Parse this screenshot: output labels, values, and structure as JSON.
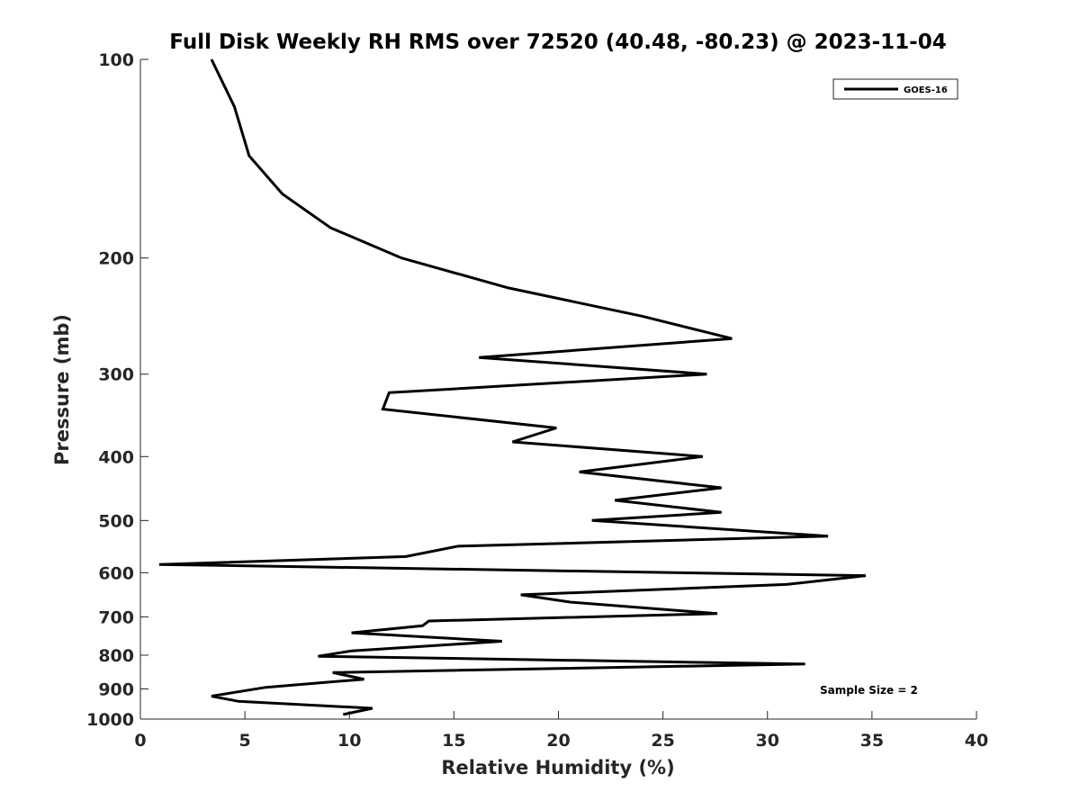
{
  "chart_data": {
    "type": "line",
    "title": "Full Disk Weekly RH RMS over 72520 (40.48, -80.23) @ 2023-11-04",
    "xlabel": "Relative Humidity (%)",
    "ylabel": "Pressure (mb)",
    "xlim": [
      0,
      40
    ],
    "ylim": [
      1000,
      100
    ],
    "yscale": "log",
    "xticks": [
      0,
      5,
      10,
      15,
      20,
      25,
      30,
      35,
      40
    ],
    "yticks": [
      100,
      200,
      300,
      400,
      500,
      600,
      700,
      800,
      900,
      1000
    ],
    "grid": false,
    "legend": {
      "position": "top-right",
      "entries": [
        "GOES-16"
      ]
    },
    "annotation": "Sample Size = 2",
    "series": [
      {
        "name": "GOES-16",
        "color": "#000000",
        "x": [
          3.4,
          4.5,
          5.2,
          6.8,
          9.1,
          12.5,
          17.6,
          24.0,
          28.3,
          16.2,
          27.1,
          11.9,
          11.6,
          19.9,
          17.8,
          26.9,
          21.0,
          27.8,
          22.7,
          27.8,
          21.6,
          32.9,
          15.2,
          12.7,
          0.9,
          34.7,
          30.9,
          18.2,
          20.6,
          27.6,
          13.8,
          13.5,
          10.1,
          17.3,
          10.1,
          8.5,
          31.8,
          9.2,
          10.7,
          6.0,
          3.4,
          4.7,
          11.1,
          9.7
        ],
        "y": [
          100,
          118,
          140,
          160,
          180,
          200,
          222,
          245,
          265,
          283,
          300,
          320,
          339,
          362,
          380,
          400,
          422,
          446,
          466,
          486,
          500,
          528,
          547,
          567,
          583,
          606,
          625,
          648,
          665,
          692,
          710,
          722,
          740,
          762,
          788,
          803,
          825,
          850,
          870,
          895,
          923,
          940,
          963,
          984
        ]
      }
    ]
  }
}
